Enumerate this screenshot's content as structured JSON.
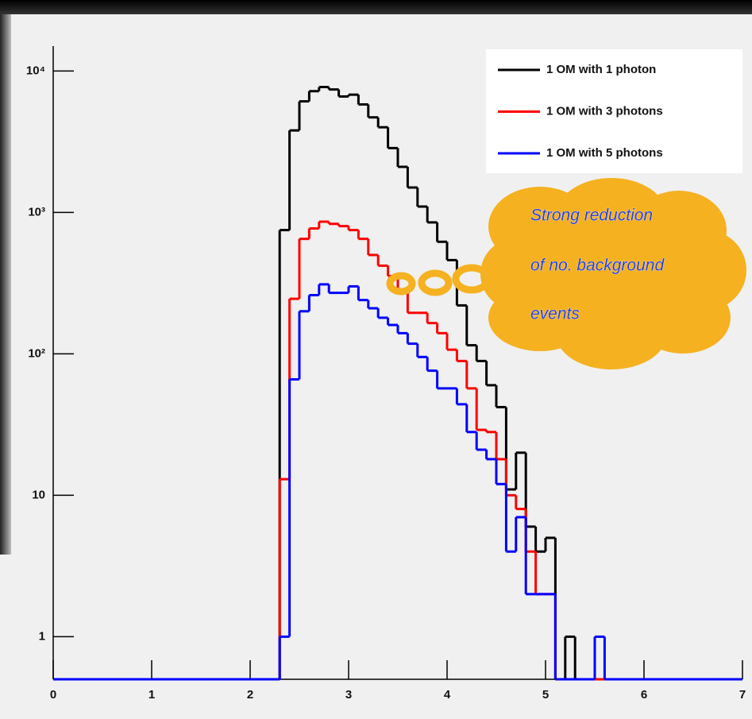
{
  "chart_data": {
    "type": "histogram",
    "log_y": true,
    "bins": [
      0,
      0.1,
      0.2,
      0.3,
      0.4,
      0.5,
      0.6,
      0.7,
      0.8,
      0.9,
      1,
      1.1,
      1.2,
      1.3,
      1.4,
      1.5,
      1.6,
      1.7,
      1.8,
      1.9,
      2,
      2.1,
      2.2,
      2.3,
      2.4,
      2.5,
      2.6,
      2.7,
      2.8,
      2.9,
      3,
      3.1,
      3.2,
      3.3,
      3.4,
      3.5,
      3.6,
      3.7,
      3.8,
      3.9,
      4,
      4.1,
      4.2,
      4.3,
      4.4,
      4.5,
      4.6,
      4.7,
      4.8,
      4.9,
      5,
      5.1,
      5.2,
      5.3,
      5.4,
      5.5,
      5.6,
      5.7,
      5.8,
      5.9,
      6,
      6.1,
      6.2,
      6.3,
      6.4,
      6.5,
      6.6,
      6.7,
      6.8,
      6.9,
      7
    ],
    "series": [
      {
        "name": "1 OM with 1 photon",
        "color": "#000000",
        "values": [
          0,
          0,
          0,
          0,
          0,
          0,
          0,
          0,
          0,
          0,
          0,
          0,
          0,
          0,
          0,
          0,
          0,
          0,
          0,
          0,
          0,
          0,
          0,
          750,
          3800,
          6100,
          7200,
          7700,
          7400,
          6600,
          6800,
          5800,
          4700,
          4000,
          2850,
          2100,
          1500,
          1100,
          850,
          620,
          460,
          220,
          115,
          89,
          60,
          42,
          11,
          20,
          6,
          4,
          5,
          0,
          1,
          0,
          0,
          0,
          0,
          0,
          0,
          0,
          0,
          0,
          0,
          0,
          0,
          0,
          0,
          0,
          0,
          0
        ]
      },
      {
        "name": "1 OM with 3 photons",
        "color": "#ff0000",
        "values": [
          0,
          0,
          0,
          0,
          0,
          0,
          0,
          0,
          0,
          0,
          0,
          0,
          0,
          0,
          0,
          0,
          0,
          0,
          0,
          0,
          0,
          0,
          0,
          13,
          245,
          650,
          770,
          860,
          830,
          800,
          750,
          650,
          500,
          420,
          355,
          285,
          195,
          195,
          165,
          140,
          107,
          89,
          57,
          29,
          28,
          18,
          10,
          8,
          4,
          2,
          2,
          0,
          0,
          0,
          0,
          0,
          0,
          0,
          0,
          0,
          0,
          0,
          0,
          0,
          0,
          0,
          0,
          0,
          0,
          0
        ]
      },
      {
        "name": "1 OM with 5 photons",
        "color": "#0000ff",
        "values": [
          0,
          0,
          0,
          0,
          0,
          0,
          0,
          0,
          0,
          0,
          0,
          0,
          0,
          0,
          0,
          0,
          0,
          0,
          0,
          0,
          0,
          0,
          0,
          1,
          66,
          200,
          260,
          310,
          270,
          270,
          300,
          240,
          210,
          180,
          160,
          140,
          118,
          95,
          76,
          57,
          57,
          44,
          28,
          21,
          18,
          12,
          4,
          7,
          2,
          2,
          2,
          0,
          0,
          0,
          0,
          1,
          0,
          0,
          0,
          0,
          0,
          0,
          0,
          0,
          0,
          0,
          0,
          0,
          0,
          0
        ]
      }
    ],
    "xlim": [
      0,
      7
    ],
    "xticks": [
      0,
      1,
      2,
      3,
      4,
      5,
      6,
      7
    ],
    "ylim": [
      0.5,
      15000
    ],
    "yticks": [
      1,
      10,
      {
        "value": 100,
        "label": "10²"
      },
      {
        "value": 1000,
        "label": "10³"
      },
      {
        "value": 10000,
        "label": "10⁴"
      }
    ],
    "legend": "top-right",
    "annotations": [
      "Strong reduction",
      "of no. background",
      "events"
    ]
  }
}
